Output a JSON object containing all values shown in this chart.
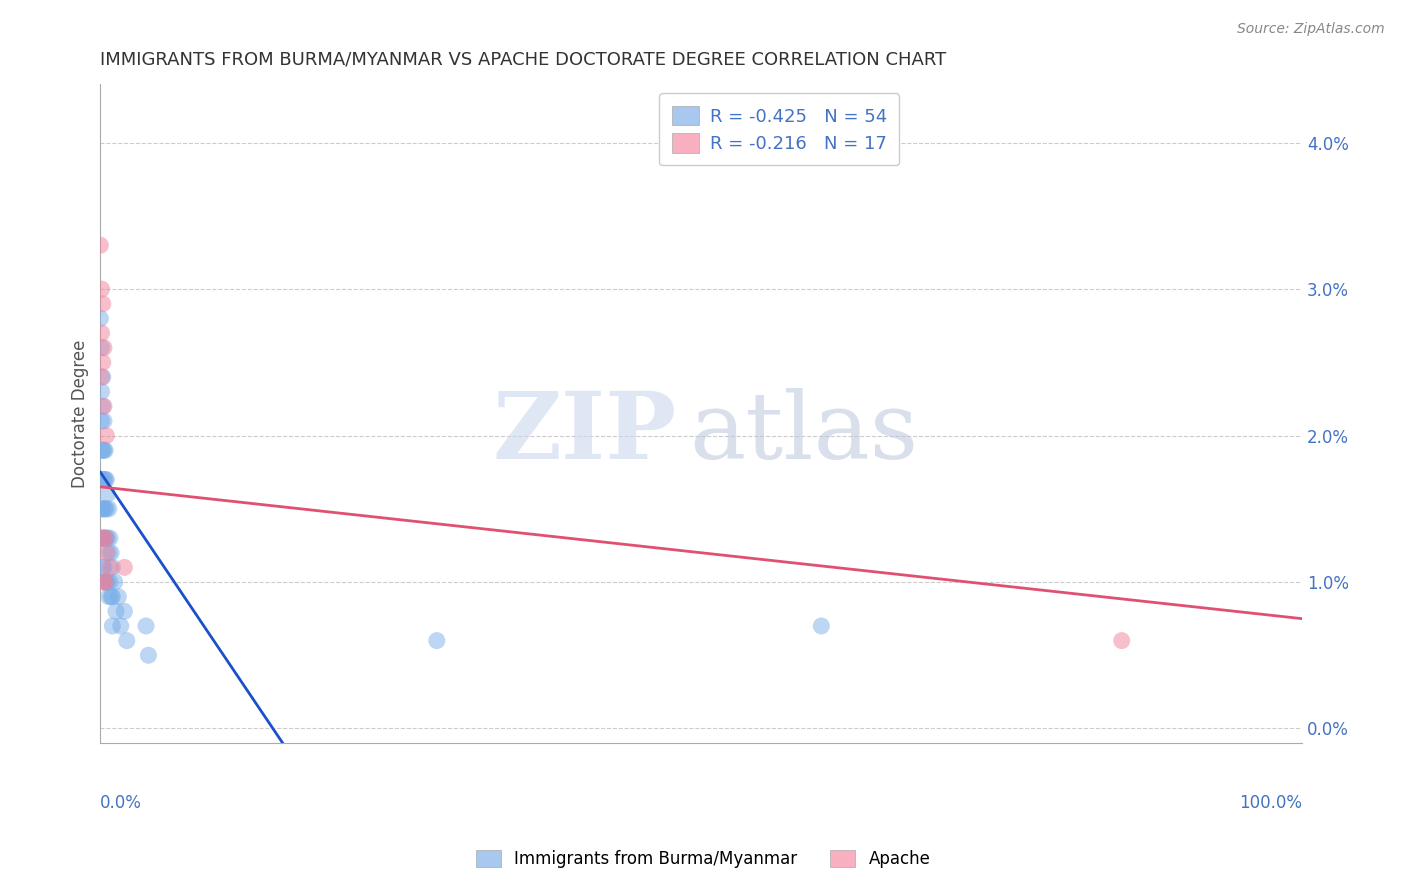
{
  "title": "IMMIGRANTS FROM BURMA/MYANMAR VS APACHE DOCTORATE DEGREE CORRELATION CHART",
  "source": "Source: ZipAtlas.com",
  "ylabel": "Doctorate Degree",
  "xlim": [
    0.0,
    1.0
  ],
  "ylim": [
    -0.001,
    0.044
  ],
  "ytick_vals": [
    0.0,
    0.01,
    0.02,
    0.03,
    0.04
  ],
  "blue_scatter_x": [
    0.0,
    0.001,
    0.001,
    0.001,
    0.001,
    0.001,
    0.001,
    0.001,
    0.002,
    0.002,
    0.002,
    0.002,
    0.002,
    0.002,
    0.002,
    0.003,
    0.003,
    0.003,
    0.003,
    0.003,
    0.003,
    0.004,
    0.004,
    0.004,
    0.004,
    0.004,
    0.005,
    0.005,
    0.005,
    0.005,
    0.006,
    0.006,
    0.006,
    0.007,
    0.007,
    0.007,
    0.008,
    0.008,
    0.009,
    0.009,
    0.01,
    0.01,
    0.01,
    0.012,
    0.013,
    0.015,
    0.017,
    0.02,
    0.022,
    0.038,
    0.04,
    0.28,
    0.6
  ],
  "blue_scatter_y": [
    0.028,
    0.026,
    0.023,
    0.021,
    0.019,
    0.017,
    0.015,
    0.013,
    0.024,
    0.022,
    0.019,
    0.017,
    0.015,
    0.013,
    0.011,
    0.021,
    0.019,
    0.017,
    0.015,
    0.013,
    0.011,
    0.019,
    0.017,
    0.015,
    0.013,
    0.01,
    0.017,
    0.015,
    0.013,
    0.01,
    0.016,
    0.013,
    0.01,
    0.015,
    0.012,
    0.009,
    0.013,
    0.01,
    0.012,
    0.009,
    0.011,
    0.009,
    0.007,
    0.01,
    0.008,
    0.009,
    0.007,
    0.008,
    0.006,
    0.007,
    0.005,
    0.006,
    0.007
  ],
  "pink_scatter_x": [
    0.0,
    0.001,
    0.001,
    0.001,
    0.002,
    0.002,
    0.002,
    0.003,
    0.003,
    0.003,
    0.004,
    0.004,
    0.005,
    0.005,
    0.008,
    0.02,
    0.85
  ],
  "pink_scatter_y": [
    0.033,
    0.03,
    0.027,
    0.024,
    0.029,
    0.025,
    0.013,
    0.026,
    0.022,
    0.01,
    0.013,
    0.01,
    0.02,
    0.012,
    0.011,
    0.011,
    0.006
  ],
  "blue_line_x": [
    0.0,
    0.16
  ],
  "blue_line_y": [
    0.0175,
    -0.002
  ],
  "pink_line_x": [
    0.0,
    1.0
  ],
  "pink_line_y": [
    0.0165,
    0.0075
  ],
  "blue_dot_color": "#7aaee8",
  "pink_dot_color": "#f08098",
  "blue_line_color": "#1a50c8",
  "pink_line_color": "#e05070",
  "legend_blue_box": "#a8c8f0",
  "legend_pink_box": "#f8b0c0",
  "text_blue_color": "#4472c4",
  "grid_color": "#cccccc",
  "title_color": "#333333",
  "background_color": "#ffffff"
}
